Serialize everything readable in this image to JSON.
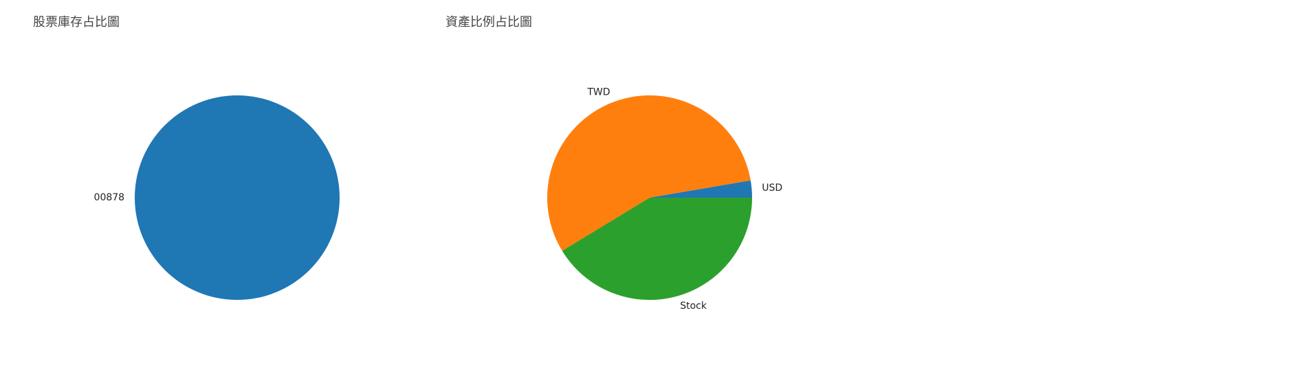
{
  "chart_data": [
    {
      "type": "pie",
      "title": "股票庫存占比圖",
      "categories": [
        "00878"
      ],
      "values": [
        100
      ],
      "colors": [
        "#1f77b4"
      ],
      "start_angle": 0,
      "direction": "counterclockwise"
    },
    {
      "type": "pie",
      "title": "資產比例占比圖",
      "categories": [
        "USD",
        "TWD",
        "Stock"
      ],
      "values": [
        2.7,
        56.0,
        41.3
      ],
      "colors": [
        "#1f77b4",
        "#ff7f0e",
        "#2ca02c"
      ],
      "start_angle": 0,
      "direction": "counterclockwise"
    }
  ]
}
